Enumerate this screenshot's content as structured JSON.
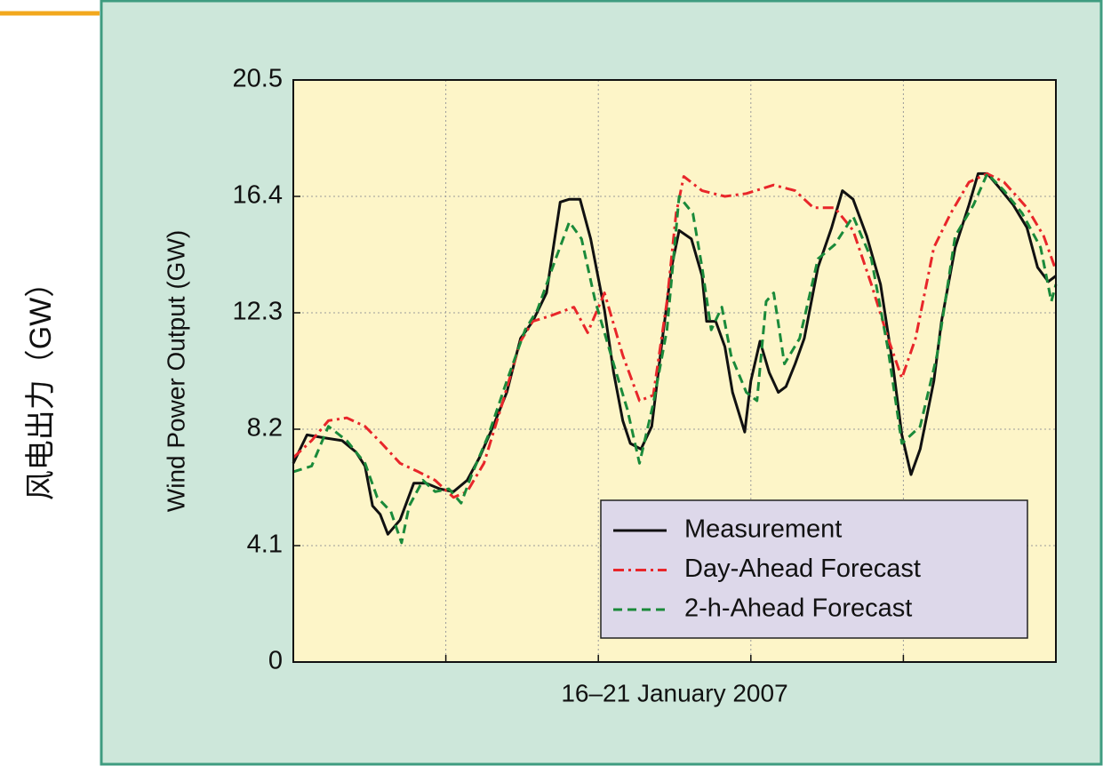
{
  "page_label": "风电出力（GW）",
  "chart_data": {
    "type": "line",
    "xlabel": "16–21 January 2007",
    "ylabel": "Wind Power Output (GW)",
    "xlim": [
      0,
      5
    ],
    "xgrid": [
      1,
      2,
      3,
      4
    ],
    "ylim": [
      0,
      20.5
    ],
    "yticks": [
      0,
      4.1,
      8.2,
      12.3,
      16.4,
      20.5
    ],
    "grid": true,
    "legend": "lower right",
    "series": [
      {
        "name": "Measurement",
        "color": "#111111",
        "dash": "solid",
        "x": [
          0,
          0.09,
          0.2,
          0.32,
          0.41,
          0.47,
          0.52,
          0.57,
          0.62,
          0.7,
          0.79,
          0.87,
          0.96,
          1.05,
          1.14,
          1.22,
          1.31,
          1.4,
          1.49,
          1.57,
          1.66,
          1.75,
          1.81,
          1.88,
          1.95,
          2.04,
          2.1,
          2.16,
          2.21,
          2.28,
          2.35,
          2.42,
          2.48,
          2.53,
          2.61,
          2.68,
          2.71,
          2.77,
          2.83,
          2.88,
          2.96,
          3.0,
          3.06,
          3.12,
          3.18,
          3.23,
          3.29,
          3.35,
          3.44,
          3.53,
          3.6,
          3.67,
          3.76,
          3.85,
          3.93,
          3.99,
          4.05,
          4.11,
          4.2,
          4.25,
          4.34,
          4.43,
          4.49,
          4.55,
          4.63,
          4.72,
          4.81,
          4.88,
          4.95,
          5.0
        ],
        "values": [
          7.0,
          8.0,
          7.9,
          7.8,
          7.4,
          6.9,
          5.5,
          5.2,
          4.5,
          5.0,
          6.3,
          6.3,
          6.1,
          6.0,
          6.4,
          7.2,
          8.3,
          9.5,
          11.4,
          12.0,
          13.0,
          16.2,
          16.3,
          16.3,
          14.9,
          12.4,
          10.2,
          8.5,
          7.7,
          7.5,
          8.3,
          11.4,
          13.9,
          15.2,
          14.9,
          13.6,
          12.0,
          12.0,
          11.1,
          9.5,
          8.1,
          9.9,
          11.3,
          10.2,
          9.5,
          9.7,
          10.5,
          11.4,
          13.9,
          15.3,
          16.6,
          16.3,
          15.0,
          13.3,
          10.5,
          8.0,
          6.6,
          7.5,
          9.9,
          12.0,
          14.6,
          16.1,
          17.2,
          17.2,
          16.7,
          16.1,
          15.3,
          13.9,
          13.4,
          13.6
        ]
      },
      {
        "name": "Day-Ahead Forecast",
        "color": "#e8262a",
        "dash": "dashdot",
        "x": [
          0,
          0.12,
          0.23,
          0.35,
          0.47,
          0.58,
          0.7,
          0.82,
          0.93,
          1.05,
          1.14,
          1.25,
          1.37,
          1.49,
          1.57,
          1.69,
          1.84,
          1.93,
          2.04,
          2.16,
          2.27,
          2.36,
          2.45,
          2.51,
          2.56,
          2.68,
          2.83,
          2.97,
          3.15,
          3.29,
          3.41,
          3.55,
          3.67,
          3.79,
          3.9,
          3.99,
          4.08,
          4.2,
          4.31,
          4.43,
          4.55,
          4.66,
          4.81,
          4.92,
          5.0
        ],
        "values": [
          7.2,
          7.8,
          8.5,
          8.6,
          8.3,
          7.7,
          7.0,
          6.7,
          6.4,
          5.8,
          6.0,
          7.0,
          9.1,
          11.3,
          12.0,
          12.2,
          12.5,
          11.6,
          13.0,
          10.8,
          9.2,
          9.4,
          12.7,
          15.8,
          17.1,
          16.6,
          16.4,
          16.5,
          16.8,
          16.6,
          16.0,
          16.0,
          15.2,
          13.3,
          11.4,
          10.0,
          11.4,
          14.6,
          15.8,
          16.9,
          17.2,
          16.9,
          16.0,
          15.0,
          13.8
        ]
      },
      {
        "name": "2-h-Ahead Forecast",
        "color": "#1a8a3a",
        "dash": "dashed",
        "x": [
          0,
          0.12,
          0.23,
          0.35,
          0.47,
          0.55,
          0.64,
          0.71,
          0.76,
          0.85,
          0.93,
          1.02,
          1.1,
          1.17,
          1.28,
          1.4,
          1.52,
          1.6,
          1.72,
          1.81,
          1.89,
          1.98,
          2.1,
          2.19,
          2.27,
          2.36,
          2.45,
          2.53,
          2.62,
          2.68,
          2.74,
          2.81,
          2.87,
          2.97,
          3.04,
          3.1,
          3.15,
          3.22,
          3.32,
          3.44,
          3.55,
          3.67,
          3.79,
          3.9,
          3.99,
          4.11,
          4.22,
          4.34,
          4.46,
          4.55,
          4.66,
          4.78,
          4.9,
          4.97,
          5.0
        ],
        "values": [
          6.7,
          6.9,
          8.3,
          7.8,
          7.0,
          5.8,
          5.3,
          4.2,
          5.5,
          6.4,
          6.0,
          6.1,
          5.6,
          6.6,
          8.0,
          9.9,
          11.7,
          12.4,
          14.2,
          15.5,
          14.9,
          12.7,
          10.5,
          8.9,
          7.0,
          9.1,
          11.7,
          16.4,
          15.8,
          13.9,
          11.7,
          12.5,
          10.8,
          9.5,
          9.2,
          12.7,
          13.0,
          10.5,
          11.4,
          14.2,
          14.7,
          15.7,
          14.2,
          11.0,
          7.7,
          8.3,
          10.8,
          15.0,
          16.1,
          17.2,
          16.6,
          15.8,
          14.6,
          12.7,
          13.3
        ]
      }
    ]
  }
}
